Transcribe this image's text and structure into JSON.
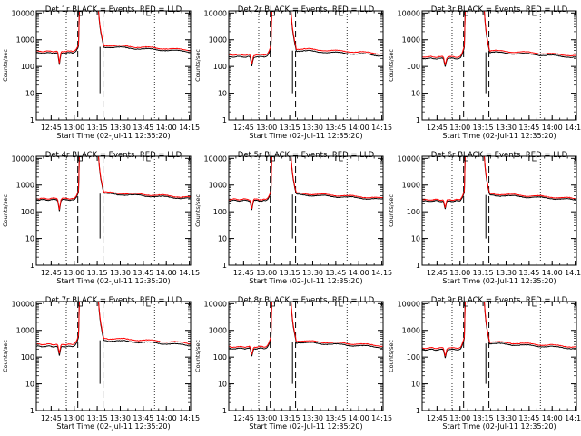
{
  "chart_data": [
    {
      "type": "line",
      "title": "Det 1r BLACK = Events, RED = LLD",
      "baseline": 320,
      "red_offset": 1.15,
      "dip_depth": 0.35
    },
    {
      "type": "line",
      "title": "Det 2r BLACK = Events, RED = LLD",
      "baseline": 230,
      "red_offset": 1.18,
      "dip_depth": 0.45
    },
    {
      "type": "line",
      "title": "Det 3r BLACK = Events, RED = LLD",
      "baseline": 200,
      "red_offset": 1.15,
      "dip_depth": 0.5
    },
    {
      "type": "line",
      "title": "Det 4r BLACK = Events, RED = LLD",
      "baseline": 280,
      "red_offset": 1.12,
      "dip_depth": 0.4
    },
    {
      "type": "line",
      "title": "Det 5r BLACK = Events, RED = LLD",
      "baseline": 260,
      "red_offset": 1.12,
      "dip_depth": 0.45
    },
    {
      "type": "line",
      "title": "Det 6r BLACK = Events, RED = LLD",
      "baseline": 250,
      "red_offset": 1.12,
      "dip_depth": 0.5
    },
    {
      "type": "line",
      "title": "Det 7r BLACK = Events, RED = LLD",
      "baseline": 250,
      "red_offset": 1.2,
      "dip_depth": 0.45
    },
    {
      "type": "line",
      "title": "Det 8r BLACK = Events, RED = LLD",
      "baseline": 210,
      "red_offset": 1.15,
      "dip_depth": 0.5
    },
    {
      "type": "line",
      "title": "Det 9r BLACK = Events, RED = LLD",
      "baseline": 190,
      "red_offset": 1.15,
      "dip_depth": 0.5
    }
  ],
  "shared": {
    "xlabel": "Start Time (02-Jul-11 12:35:20)",
    "ylabel": "Counts/sec",
    "x_ticks": [
      "12:45",
      "13:00",
      "13:15",
      "13:30",
      "13:45",
      "14:00",
      "14:15"
    ],
    "x_tick_minutes": [
      9.67,
      24.67,
      39.67,
      54.67,
      69.67,
      84.67,
      99.67
    ],
    "x_range_minutes": [
      0,
      100.5
    ],
    "y_ticks": [
      "1",
      "10",
      "100",
      "1000",
      "10000"
    ],
    "y_range": [
      1,
      12000
    ],
    "y_scale": "log",
    "series": [
      {
        "name": "Events",
        "color": "#000000"
      },
      {
        "name": "LLD",
        "color": "#ff0000"
      }
    ],
    "dotted_lines_minutes": [
      19.5,
      77.0
    ],
    "dashed_lines_minutes": [
      27.0,
      43.5
    ],
    "flare_start_minutes": 28.0,
    "flare_end_minutes": 40.5,
    "saa_dip_minutes": 15.0,
    "spike_minutes": 41.5
  }
}
